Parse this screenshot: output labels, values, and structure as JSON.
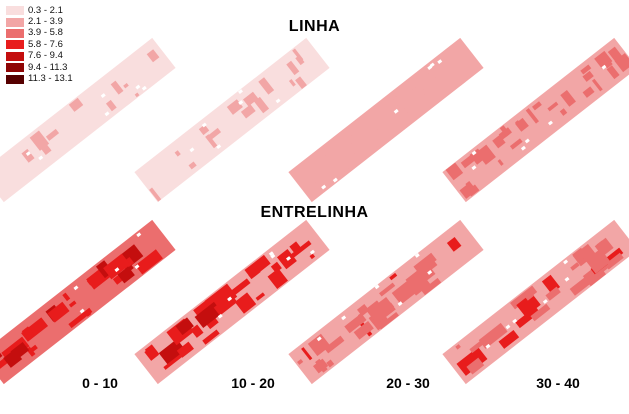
{
  "legend": {
    "classes": [
      {
        "label": "0.3 - 2.1",
        "color": "#f9dede"
      },
      {
        "label": "2.1 - 3.9",
        "color": "#f2a6a6"
      },
      {
        "label": "3.9 - 5.8",
        "color": "#eb6e6e"
      },
      {
        "label": "5.8 - 7.6",
        "color": "#e81c1c"
      },
      {
        "label": "7.6 - 9.4",
        "color": "#c40e0e"
      },
      {
        "label": "9.4 - 11.3",
        "color": "#8e0505"
      },
      {
        "label": "11.3 - 13.1",
        "color": "#560000"
      }
    ]
  },
  "sections": {
    "linha": "LINHA",
    "entrelinha": "ENTRELINHA"
  },
  "depths": [
    "0 - 10",
    "10 - 20",
    "20 - 30",
    "30 - 40"
  ],
  "maps": {
    "linha": {
      "base_class": [
        0,
        0,
        1,
        1
      ],
      "patch_class": [
        1,
        1,
        1,
        2
      ]
    },
    "entrelinha": {
      "base_class": [
        2,
        1,
        1,
        1
      ],
      "patch_class": [
        3,
        3,
        2,
        2
      ]
    }
  }
}
